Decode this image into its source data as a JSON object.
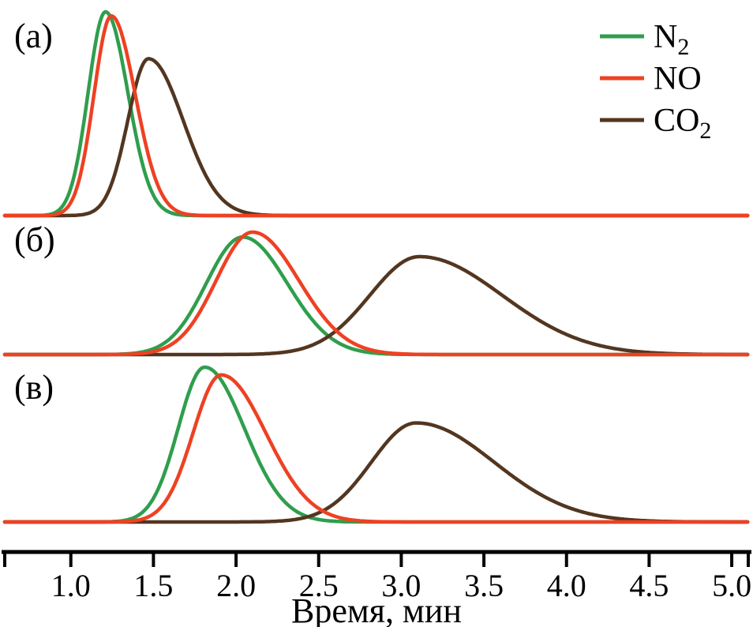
{
  "chart_data": {
    "type": "line",
    "title": "",
    "xlabel": "Время, мин",
    "grid": false,
    "legend_position": "top-right",
    "x_axis": {
      "min": 0.6,
      "max": 5.1,
      "ticks": [
        1.0,
        1.5,
        2.0,
        2.5,
        3.0,
        3.5,
        4.0,
        4.5,
        5.0
      ],
      "tick_labels": [
        "1.0",
        "1.5",
        "2.0",
        "2.5",
        "3.0",
        "3.5",
        "4.0",
        "4.5",
        "5.0"
      ],
      "edge_ticks": true
    },
    "series": [
      {
        "id": "N2",
        "label": "N",
        "subscript": "2",
        "color": "#2f9e4d"
      },
      {
        "id": "NO",
        "label": "NO",
        "subscript": "",
        "color": "#ee4123"
      },
      {
        "id": "CO2",
        "label": "CO",
        "subscript": "2",
        "color": "#533620"
      }
    ],
    "panels": [
      {
        "id": "a",
        "label": "(а)",
        "peaks": [
          {
            "series": "N2",
            "center": 1.21,
            "sigma_left": 0.105,
            "sigma_right": 0.135,
            "height": 1.0
          },
          {
            "series": "CO2",
            "center": 1.47,
            "sigma_left": 0.125,
            "sigma_right": 0.21,
            "height": 0.77
          },
          {
            "series": "NO",
            "center": 1.245,
            "sigma_left": 0.105,
            "sigma_right": 0.145,
            "height": 0.98
          }
        ]
      },
      {
        "id": "b",
        "label": "(б)",
        "peaks": [
          {
            "series": "N2",
            "center": 2.04,
            "sigma_left": 0.22,
            "sigma_right": 0.27,
            "height": 0.96
          },
          {
            "series": "CO2",
            "center": 3.11,
            "sigma_left": 0.3,
            "sigma_right": 0.5,
            "height": 0.8
          },
          {
            "series": "NO",
            "center": 2.1,
            "sigma_left": 0.22,
            "sigma_right": 0.28,
            "height": 1.0
          }
        ]
      },
      {
        "id": "v",
        "label": "(в)",
        "peaks": [
          {
            "series": "N2",
            "center": 1.81,
            "sigma_left": 0.16,
            "sigma_right": 0.24,
            "height": 1.0
          },
          {
            "series": "CO2",
            "center": 3.09,
            "sigma_left": 0.27,
            "sigma_right": 0.47,
            "height": 0.64
          },
          {
            "series": "NO",
            "center": 1.91,
            "sigma_left": 0.17,
            "sigma_right": 0.27,
            "height": 0.95
          }
        ]
      }
    ]
  }
}
